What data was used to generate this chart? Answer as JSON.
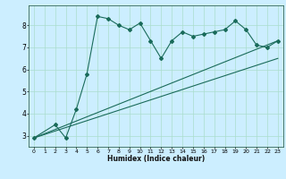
{
  "title": "",
  "xlabel": "Humidex (Indice chaleur)",
  "background_color": "#cceeff",
  "line_color": "#1a6b5a",
  "grid_color": "#aaddcc",
  "xlim": [
    -0.5,
    23.5
  ],
  "ylim": [
    2.5,
    8.9
  ],
  "yticks": [
    3,
    4,
    5,
    6,
    7,
    8
  ],
  "xticks": [
    0,
    1,
    2,
    3,
    4,
    5,
    6,
    7,
    8,
    9,
    10,
    11,
    12,
    13,
    14,
    15,
    16,
    17,
    18,
    19,
    20,
    21,
    22,
    23
  ],
  "main_x": [
    0,
    2,
    3,
    4,
    5,
    6,
    7,
    8,
    9,
    10,
    11,
    12,
    13,
    14,
    15,
    16,
    17,
    18,
    19,
    20,
    21,
    22,
    23
  ],
  "main_y": [
    2.9,
    3.5,
    2.9,
    4.2,
    5.8,
    8.4,
    8.3,
    8.0,
    7.8,
    8.1,
    7.3,
    6.5,
    7.3,
    7.7,
    7.5,
    7.6,
    7.7,
    7.8,
    8.2,
    7.8,
    7.1,
    7.0,
    7.3
  ],
  "line1_x": [
    0,
    23
  ],
  "line1_y": [
    2.9,
    7.3
  ],
  "line2_x": [
    0,
    23
  ],
  "line2_y": [
    2.9,
    6.5
  ]
}
